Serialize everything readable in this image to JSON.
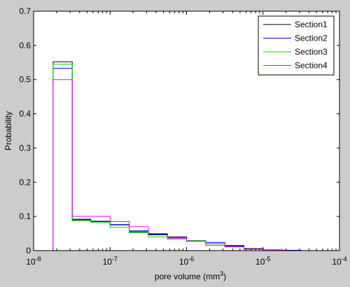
{
  "chart_data": {
    "type": "line",
    "subtype": "stairs-histogram",
    "title": "",
    "xlabel": "pore volume (mm",
    "xlabel_superscript": "3",
    "xlabel_suffix": ")",
    "ylabel": "Probability",
    "x_scale": "log",
    "xlim": [
      1e-08,
      0.0001
    ],
    "ylim": [
      0,
      0.7
    ],
    "x_ticks": [
      {
        "base": "10",
        "exp": "-8"
      },
      {
        "base": "10",
        "exp": "-7"
      },
      {
        "base": "10",
        "exp": "-6"
      },
      {
        "base": "10",
        "exp": "-5"
      },
      {
        "base": "10",
        "exp": "-4"
      }
    ],
    "y_ticks": [
      "0",
      "0.1",
      "0.2",
      "0.3",
      "0.4",
      "0.5",
      "0.6",
      "0.7"
    ],
    "y_tick_values": [
      0,
      0.1,
      0.2,
      0.3,
      0.4,
      0.5,
      0.6,
      0.7
    ],
    "grid": false,
    "legend_position": "top-right",
    "bin_edges": [
      1.8e-08,
      3.2e-08,
      5.6e-08,
      1e-07,
      1.78e-07,
      3.16e-07,
      5.62e-07,
      1e-06,
      1.78e-06,
      3.16e-06,
      5.62e-06,
      1e-05,
      1.78e-05,
      3.16e-05
    ],
    "series": [
      {
        "name": "Section1",
        "color": "#000000",
        "values": [
          0.552,
          0.09,
          0.085,
          0.075,
          0.055,
          0.048,
          0.04,
          0.028,
          0.02,
          0.015,
          0.006,
          0.002,
          0.001
        ]
      },
      {
        "name": "Section2",
        "color": "#0000ff",
        "values": [
          0.533,
          0.092,
          0.086,
          0.076,
          0.058,
          0.046,
          0.037,
          0.029,
          0.024,
          0.013,
          0.004,
          0.002,
          0.001
        ]
      },
      {
        "name": "Section3",
        "color": "#00dd00",
        "values": [
          0.545,
          0.087,
          0.082,
          0.068,
          0.052,
          0.04,
          0.033,
          0.029,
          0.02,
          0.011,
          0.004,
          0.001,
          0.0
        ]
      },
      {
        "name": "Section4",
        "color": "#ff00ff",
        "values": [
          0.5,
          0.1,
          0.1,
          0.085,
          0.07,
          0.05,
          0.036,
          0.027,
          0.015,
          0.011,
          0.004,
          0.001,
          0.0
        ]
      }
    ]
  }
}
